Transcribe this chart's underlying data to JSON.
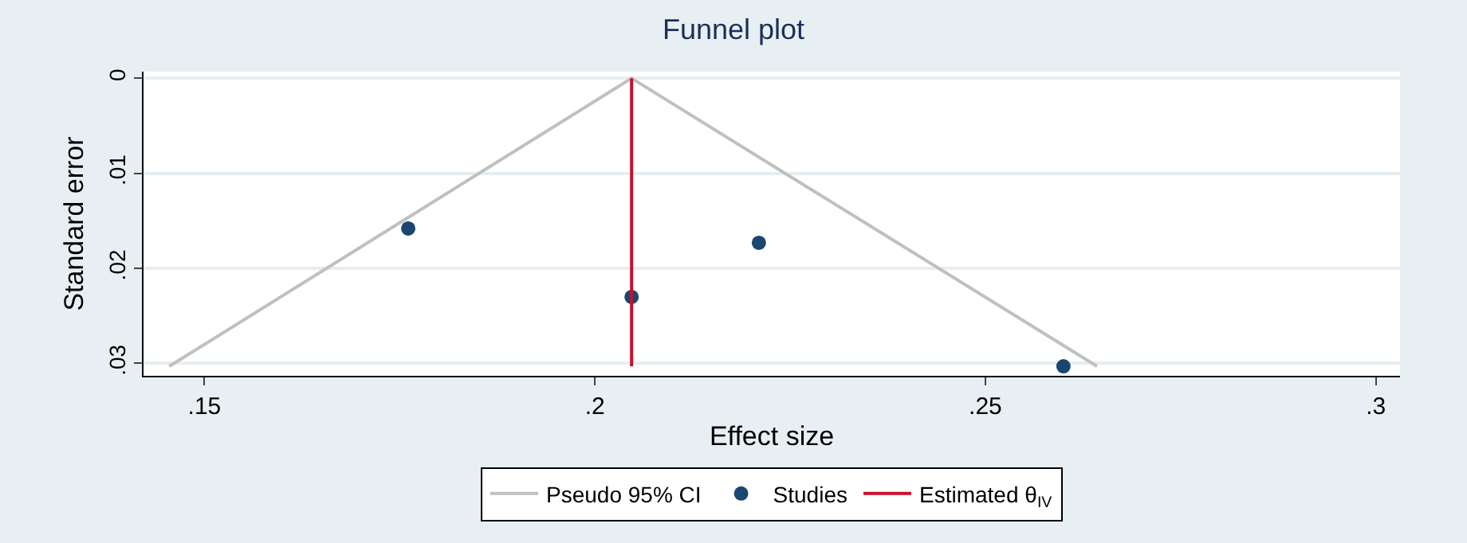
{
  "chart_data": {
    "type": "scatter",
    "title": "Funnel plot",
    "xlabel": "Effect size",
    "ylabel": "Standard error",
    "series": [
      {
        "name": "Pseudo 95% CI",
        "type": "line",
        "color": "#c0c0c0",
        "x": [
          0.1455,
          0.2047,
          0.2643
        ],
        "values": [
          0.0303,
          0,
          0.0303
        ]
      },
      {
        "name": "Studies",
        "color": "#1a476f",
        "marker": "circle",
        "x": [
          0.1761,
          0.2047,
          0.221,
          0.26
        ],
        "values": [
          0.0158,
          0.023,
          0.0173,
          0.0303
        ]
      },
      {
        "name": "Estimated θ$_{IV}$",
        "type": "line",
        "color": "#c8102e",
        "x": [
          0.2047,
          0.2047
        ],
        "values": [
          0,
          0.0303
        ]
      }
    ],
    "xlim": [
      0.1422,
      0.3031
    ],
    "ylim": [
      0.0313,
      -0.0007
    ],
    "xticks": [
      {
        "value": 0.15,
        "label": ".15"
      },
      {
        "value": 0.2,
        "label": ".2"
      },
      {
        "value": 0.25,
        "label": ".25"
      },
      {
        "value": 0.3,
        "label": ".3"
      }
    ],
    "yticks": [
      0,
      {
        "value": 0.01,
        "label": ".01"
      },
      {
        "value": 0.02,
        "label": ".02"
      },
      {
        "value": 0.03,
        "label": ".03"
      }
    ],
    "grid": "y",
    "legend": "bottom"
  }
}
